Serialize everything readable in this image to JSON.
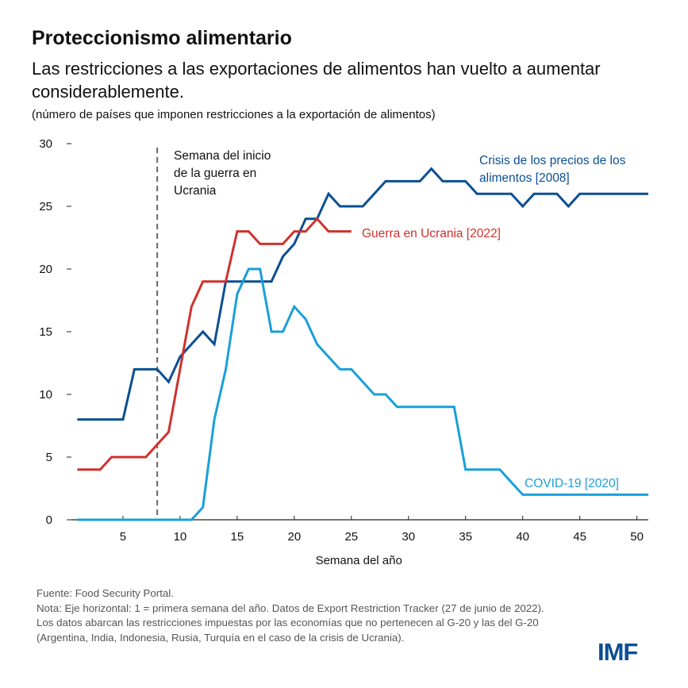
{
  "header": {
    "title": "Proteccionismo alimentario",
    "subtitle": "Las restricciones a las exportaciones de alimentos han vuelto a aumentar considerablemente.",
    "units": "(número de países que imponen restricciones a la exportación de alimentos)"
  },
  "chart_data": {
    "type": "line",
    "xlabel": "Semana del año",
    "ylabel": "",
    "xlim": [
      1,
      51
    ],
    "ylim": [
      0,
      30
    ],
    "x_ticks": [
      5,
      10,
      15,
      20,
      25,
      30,
      35,
      40,
      45,
      50
    ],
    "y_ticks": [
      0,
      5,
      10,
      15,
      20,
      25,
      30
    ],
    "grid": false,
    "annotation": {
      "x": 8,
      "text_lines": [
        "Semana del inicio",
        "de la guerra en",
        "Ucrania"
      ]
    },
    "series": [
      {
        "name": "Crisis de los precios de los alimentos [2008]",
        "label_lines": [
          "Crisis de los precios de los",
          "alimentos [2008]"
        ],
        "color": "#0b4f93",
        "start_week": 1,
        "values": [
          8,
          8,
          8,
          8,
          8,
          12,
          12,
          12,
          11,
          13,
          14,
          15,
          14,
          19,
          19,
          19,
          19,
          19,
          21,
          22,
          24,
          24,
          26,
          25,
          25,
          25,
          26,
          27,
          27,
          27,
          27,
          28,
          27,
          27,
          27,
          26,
          26,
          26,
          26,
          25,
          26,
          26,
          26,
          25,
          26,
          26,
          26,
          26,
          26,
          26,
          26
        ]
      },
      {
        "name": "Guerra en Ucrania [2022]",
        "label_lines": [
          "Guerra en Ucrania [2022]"
        ],
        "color": "#d0312d",
        "start_week": 1,
        "values": [
          4,
          4,
          4,
          5,
          5,
          5,
          5,
          6,
          7,
          12,
          17,
          19,
          19,
          19,
          23,
          23,
          22,
          22,
          22,
          23,
          23,
          24,
          23,
          23,
          23
        ]
      },
      {
        "name": "COVID-19 [2020]",
        "label_lines": [
          "COVID-19 [2020]"
        ],
        "color": "#1a9fd9",
        "start_week": 1,
        "values": [
          0,
          0,
          0,
          0,
          0,
          0,
          0,
          0,
          0,
          0,
          0,
          1,
          8,
          12,
          18,
          20,
          20,
          15,
          15,
          17,
          16,
          14,
          13,
          12,
          12,
          11,
          10,
          10,
          9,
          9,
          9,
          9,
          9,
          9,
          4,
          4,
          4,
          4,
          3,
          2,
          2,
          2,
          2,
          2,
          2,
          2,
          2,
          2,
          2,
          2,
          2
        ]
      }
    ]
  },
  "footer": {
    "source": "Fuente: Food Security Portal.",
    "note1": "Nota: Eje horizontal: 1 = primera semana del año. Datos de Export Restriction Tracker (27 de junio de 2022).",
    "note2": "Los datos abarcan las restricciones impuestas por las economías que no pertenecen  al G-20 y las del G-20",
    "note3": "(Argentina, India, Indonesia, Rusia, Turquía en el caso de la crisis de Ucrania).",
    "logo": "IMF"
  }
}
